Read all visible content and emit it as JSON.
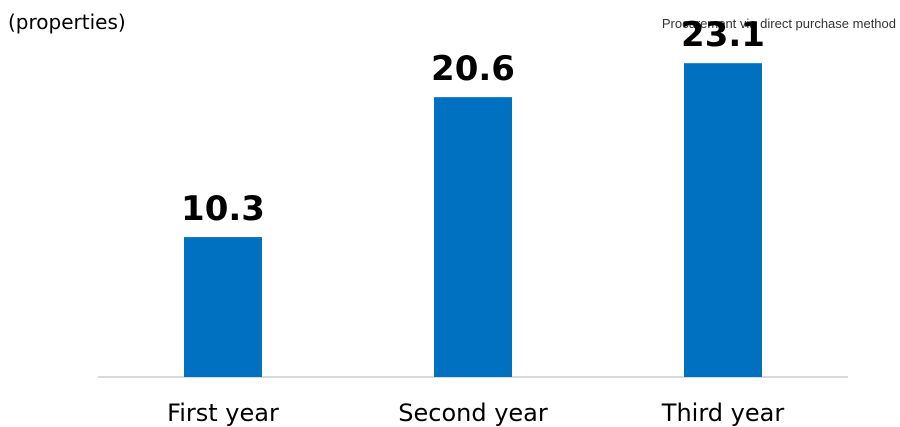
{
  "chart_data": {
    "type": "bar",
    "ylabel": "(properties)",
    "annotation": "Procurement via direct purchase method",
    "categories": [
      "First year",
      "Second year",
      "Third year"
    ],
    "values": [
      10.3,
      20.6,
      23.1
    ],
    "value_labels": [
      "10.3",
      "20.6",
      "23.1"
    ],
    "ylim": [
      0,
      26.5
    ],
    "grid": false,
    "legend": "none",
    "colors": {
      "bar": "#0070C0",
      "axis": "#D9D9D9",
      "text": "#000000"
    }
  }
}
